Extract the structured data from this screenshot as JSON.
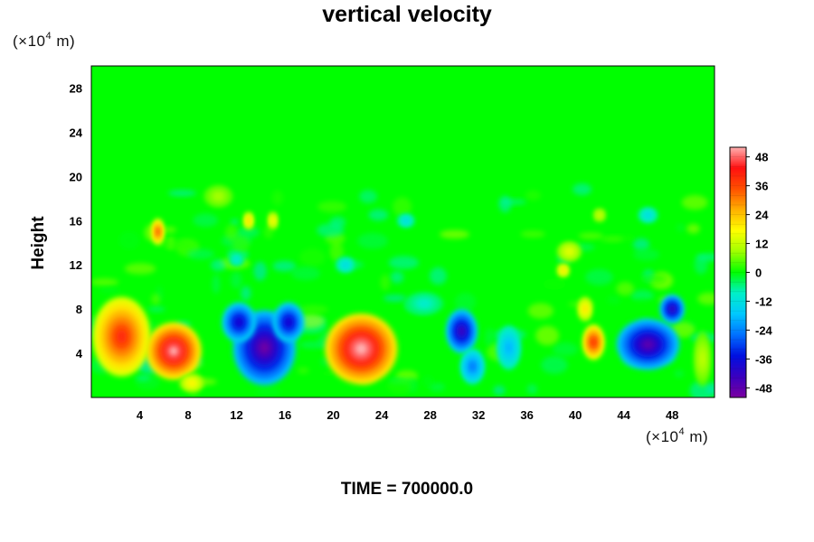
{
  "chart_data": {
    "type": "heatmap",
    "title": "vertical velocity",
    "ylabel": "Height",
    "x_unit": {
      "base": "(×10",
      "exp": "4",
      "suffix": " m)"
    },
    "y_unit": {
      "base": "(×10",
      "exp": "4",
      "suffix": " m)"
    },
    "xlim": [
      0,
      51.5
    ],
    "ylim": [
      0,
      30
    ],
    "x_ticks": [
      4,
      8,
      12,
      16,
      20,
      24,
      28,
      32,
      36,
      40,
      44,
      48
    ],
    "y_ticks": [
      4,
      8,
      12,
      16,
      20,
      24,
      28
    ],
    "colorbar": {
      "range": [
        -52,
        52
      ],
      "ticks": [
        48,
        36,
        24,
        12,
        0,
        -12,
        -24,
        -36,
        -48
      ],
      "stops": [
        "#7a00a0",
        "#3a00c0",
        "#0010e0",
        "#0070ff",
        "#00c8ff",
        "#00f0c8",
        "#00ff00",
        "#a0ff00",
        "#ffff00",
        "#ffb000",
        "#ff5000",
        "#ff1010",
        "#ffb0b0"
      ]
    },
    "background_value": 0,
    "features": [
      {
        "x": 2.5,
        "y": 5.5,
        "rx": 2.4,
        "ry": 3.6,
        "value": 40
      },
      {
        "x": 6.8,
        "y": 4.2,
        "rx": 2.3,
        "ry": 2.6,
        "value": 52
      },
      {
        "x": 14.3,
        "y": 4.5,
        "rx": 2.6,
        "ry": 3.4,
        "value": -50
      },
      {
        "x": 12.2,
        "y": 6.8,
        "rx": 1.4,
        "ry": 1.8,
        "value": -40
      },
      {
        "x": 16.3,
        "y": 6.8,
        "rx": 1.3,
        "ry": 1.8,
        "value": -40
      },
      {
        "x": 22.3,
        "y": 4.4,
        "rx": 3.0,
        "ry": 3.2,
        "value": 54
      },
      {
        "x": 30.6,
        "y": 6.0,
        "rx": 1.3,
        "ry": 2.0,
        "value": -44
      },
      {
        "x": 31.5,
        "y": 2.8,
        "rx": 1.0,
        "ry": 1.6,
        "value": -26
      },
      {
        "x": 34.5,
        "y": 4.5,
        "rx": 1.0,
        "ry": 2.0,
        "value": -20
      },
      {
        "x": 41.5,
        "y": 5.0,
        "rx": 0.9,
        "ry": 1.6,
        "value": 40
      },
      {
        "x": 40.8,
        "y": 8.0,
        "rx": 0.6,
        "ry": 1.1,
        "value": 22
      },
      {
        "x": 46.0,
        "y": 4.8,
        "rx": 2.6,
        "ry": 2.3,
        "value": -48
      },
      {
        "x": 48.0,
        "y": 8.0,
        "rx": 1.0,
        "ry": 1.3,
        "value": -44
      },
      {
        "x": 50.5,
        "y": 3.5,
        "rx": 0.7,
        "ry": 2.5,
        "value": 12
      },
      {
        "x": 5.5,
        "y": 15.0,
        "rx": 0.5,
        "ry": 1.2,
        "value": 36
      },
      {
        "x": 13.0,
        "y": 16.0,
        "rx": 0.4,
        "ry": 0.8,
        "value": 24
      },
      {
        "x": 15.0,
        "y": 16.0,
        "rx": 0.4,
        "ry": 0.8,
        "value": 20
      },
      {
        "x": 10.5,
        "y": 18.2,
        "rx": 1.2,
        "ry": 1.0,
        "value": 10
      },
      {
        "x": 39.5,
        "y": 13.2,
        "rx": 1.0,
        "ry": 0.9,
        "value": 16
      },
      {
        "x": 39.0,
        "y": 11.5,
        "rx": 0.5,
        "ry": 0.6,
        "value": 22
      },
      {
        "x": 42.0,
        "y": 16.5,
        "rx": 0.5,
        "ry": 0.6,
        "value": 14
      },
      {
        "x": 26.0,
        "y": 16.0,
        "rx": 0.7,
        "ry": 0.6,
        "value": -14
      },
      {
        "x": 12.0,
        "y": 12.5,
        "rx": 0.6,
        "ry": 0.6,
        "value": -12
      },
      {
        "x": 21.0,
        "y": 12.0,
        "rx": 0.8,
        "ry": 0.7,
        "value": -14
      },
      {
        "x": 27.5,
        "y": 8.5,
        "rx": 1.6,
        "ry": 1.0,
        "value": -10
      },
      {
        "x": 8.3,
        "y": 1.3,
        "rx": 1.0,
        "ry": 0.8,
        "value": 20
      },
      {
        "x": 46.0,
        "y": 16.5,
        "rx": 0.8,
        "ry": 0.7,
        "value": -14
      }
    ]
  },
  "footer": {
    "time_label": "TIME = 700000.0"
  }
}
